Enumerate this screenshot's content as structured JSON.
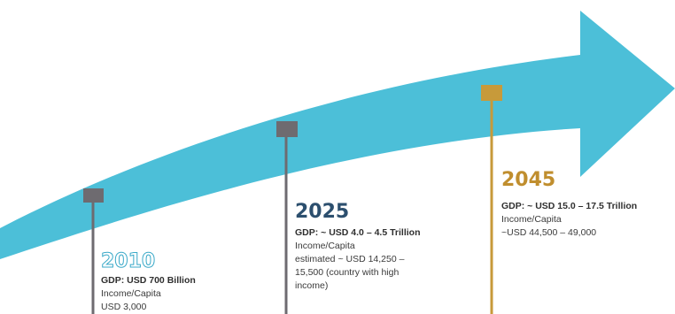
{
  "colors": {
    "arrow": "#4cbfd8",
    "gray_marker": "#6e6b70",
    "gold_marker": "#c79a3a",
    "year_outline": "#3aa9c8",
    "year_gold": "#c08e2e",
    "year_dark": "#2c4f6e"
  },
  "milestones": [
    {
      "year": "2010",
      "lines": [
        "GDP: USD 700 Billion",
        "Income/Capita",
        "USD 3,000"
      ]
    },
    {
      "year": "2025",
      "lines": [
        "GDP: ~ USD 4.0 – 4.5 Trillion",
        "Income/Capita",
        "estimated ~ USD 14,250 –",
        "15,500 (country with high",
        "income)"
      ]
    },
    {
      "year": "2045",
      "lines": [
        "GDP: ~ USD 15.0 – 17.5 Trillion",
        "Income/Capita",
        "~USD 44,500 – 49,000"
      ]
    }
  ]
}
